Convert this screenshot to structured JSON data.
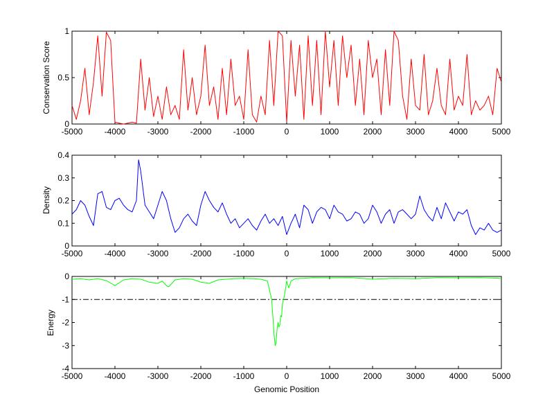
{
  "chart_data": [
    {
      "type": "line",
      "ylabel": "Conservation Score",
      "xlabel": "",
      "xlim": [
        -5000,
        5000
      ],
      "ylim": [
        0,
        1
      ],
      "xticks": [
        -5000,
        -4000,
        -3000,
        -2000,
        -1000,
        0,
        1000,
        2000,
        3000,
        4000,
        5000
      ],
      "yticks": [
        0,
        0.5,
        1
      ],
      "ytick_labels": [
        "0",
        "0.5",
        "1"
      ],
      "color": "#ff0000",
      "series": [
        {
          "x": [
            -5000,
            -4900,
            -4800,
            -4700,
            -4600,
            -4500,
            -4400,
            -4300,
            -4200,
            -4100,
            -4000,
            -3900,
            -3800,
            -3700,
            -3600,
            -3500,
            -3400,
            -3300,
            -3200,
            -3100,
            -3000,
            -2900,
            -2800,
            -2700,
            -2600,
            -2500,
            -2400,
            -2300,
            -2200,
            -2100,
            -2000,
            -1900,
            -1800,
            -1700,
            -1600,
            -1500,
            -1400,
            -1300,
            -1200,
            -1100,
            -1000,
            -900,
            -800,
            -700,
            -600,
            -500,
            -400,
            -300,
            -200,
            -100,
            0,
            100,
            200,
            300,
            400,
            500,
            600,
            700,
            800,
            900,
            1000,
            1100,
            1200,
            1300,
            1400,
            1500,
            1600,
            1700,
            1800,
            1900,
            2000,
            2100,
            2200,
            2300,
            2400,
            2500,
            2600,
            2700,
            2800,
            2900,
            3000,
            3100,
            3200,
            3300,
            3400,
            3500,
            3600,
            3700,
            3800,
            3900,
            4000,
            4100,
            4200,
            4300,
            4400,
            4500,
            4600,
            4700,
            4800,
            4900,
            5000
          ],
          "values": [
            0.2,
            0.05,
            0.25,
            0.6,
            0.1,
            0.45,
            0.95,
            0.3,
            0.99,
            0.9,
            0.02,
            0.01,
            0.0,
            0.01,
            0.02,
            0.01,
            0.7,
            0.15,
            0.5,
            0.08,
            0.3,
            0.05,
            0.4,
            0.1,
            0.2,
            0.05,
            0.8,
            0.15,
            0.5,
            0.1,
            0.3,
            0.85,
            0.2,
            0.4,
            0.05,
            0.6,
            0.1,
            0.7,
            0.2,
            0.3,
            0.05,
            0.8,
            0.1,
            0.02,
            0.3,
            0.1,
            0.9,
            0.2,
            1.0,
            0.95,
            0.02,
            0.9,
            0.3,
            0.85,
            0.05,
            0.95,
            0.2,
            0.9,
            0.1,
            1.0,
            0.4,
            0.9,
            0.2,
            0.95,
            0.5,
            0.85,
            0.2,
            0.7,
            0.1,
            0.9,
            0.5,
            0.7,
            0.1,
            0.8,
            0.2,
            1.0,
            0.9,
            0.3,
            0.05,
            0.7,
            0.2,
            0.15,
            0.75,
            0.1,
            0.25,
            0.6,
            0.2,
            0.1,
            0.7,
            0.15,
            0.3,
            0.2,
            0.75,
            0.1,
            0.25,
            0.15,
            0.2,
            0.3,
            0.1,
            0.6,
            0.45
          ]
        }
      ]
    },
    {
      "type": "line",
      "ylabel": "Density",
      "xlabel": "",
      "xlim": [
        -5000,
        5000
      ],
      "ylim": [
        0,
        0.4
      ],
      "xticks": [
        -5000,
        -4000,
        -3000,
        -2000,
        -1000,
        0,
        1000,
        2000,
        3000,
        4000,
        5000
      ],
      "yticks": [
        0,
        0.1,
        0.2,
        0.3,
        0.4
      ],
      "ytick_labels": [
        "0",
        "0.1",
        "0.2",
        "0.3",
        "0.4"
      ],
      "color": "#0000ff",
      "series": [
        {
          "x": [
            -5000,
            -4900,
            -4800,
            -4700,
            -4600,
            -4500,
            -4400,
            -4300,
            -4200,
            -4100,
            -4000,
            -3900,
            -3800,
            -3700,
            -3600,
            -3500,
            -3450,
            -3400,
            -3300,
            -3200,
            -3100,
            -3000,
            -2900,
            -2800,
            -2700,
            -2600,
            -2500,
            -2400,
            -2300,
            -2200,
            -2100,
            -2000,
            -1900,
            -1800,
            -1700,
            -1600,
            -1500,
            -1400,
            -1300,
            -1200,
            -1100,
            -1000,
            -900,
            -800,
            -700,
            -600,
            -500,
            -400,
            -300,
            -200,
            -100,
            0,
            100,
            200,
            300,
            400,
            500,
            600,
            700,
            800,
            900,
            1000,
            1100,
            1200,
            1300,
            1400,
            1500,
            1600,
            1700,
            1800,
            1900,
            2000,
            2100,
            2200,
            2300,
            2400,
            2500,
            2600,
            2700,
            2800,
            2900,
            3000,
            3100,
            3200,
            3300,
            3400,
            3500,
            3600,
            3700,
            3800,
            3900,
            4000,
            4100,
            4200,
            4300,
            4400,
            4500,
            4600,
            4700,
            4800,
            4900,
            5000
          ],
          "values": [
            0.14,
            0.16,
            0.2,
            0.18,
            0.13,
            0.09,
            0.23,
            0.24,
            0.17,
            0.16,
            0.2,
            0.21,
            0.18,
            0.16,
            0.15,
            0.2,
            0.38,
            0.33,
            0.18,
            0.15,
            0.12,
            0.18,
            0.24,
            0.2,
            0.12,
            0.06,
            0.08,
            0.12,
            0.14,
            0.11,
            0.09,
            0.18,
            0.24,
            0.2,
            0.17,
            0.15,
            0.19,
            0.14,
            0.1,
            0.12,
            0.08,
            0.1,
            0.12,
            0.09,
            0.07,
            0.11,
            0.14,
            0.1,
            0.12,
            0.09,
            0.13,
            0.05,
            0.1,
            0.14,
            0.08,
            0.18,
            0.16,
            0.1,
            0.15,
            0.17,
            0.16,
            0.12,
            0.18,
            0.15,
            0.14,
            0.11,
            0.12,
            0.15,
            0.14,
            0.1,
            0.12,
            0.18,
            0.15,
            0.1,
            0.14,
            0.16,
            0.1,
            0.15,
            0.16,
            0.14,
            0.12,
            0.14,
            0.22,
            0.16,
            0.13,
            0.11,
            0.17,
            0.12,
            0.19,
            0.15,
            0.11,
            0.15,
            0.14,
            0.16,
            0.09,
            0.05,
            0.08,
            0.07,
            0.1,
            0.07,
            0.06,
            0.07
          ]
        }
      ]
    },
    {
      "type": "line",
      "ylabel": "Energy",
      "xlabel": "Genomic Position",
      "xlim": [
        -5000,
        5000
      ],
      "ylim": [
        -4,
        0
      ],
      "xticks": [
        -5000,
        -4000,
        -3000,
        -2000,
        -1000,
        0,
        1000,
        2000,
        3000,
        4000,
        5000
      ],
      "yticks": [
        0,
        -1,
        -2,
        -3,
        -4
      ],
      "ytick_labels": [
        "0",
        "-1",
        "-2",
        "-3",
        "-4"
      ],
      "color": "#00ff00",
      "threshold": -1,
      "series": [
        {
          "x": [
            -5000,
            -4800,
            -4600,
            -4400,
            -4200,
            -4000,
            -3800,
            -3600,
            -3400,
            -3200,
            -3000,
            -2900,
            -2800,
            -2750,
            -2600,
            -2400,
            -2200,
            -2000,
            -1800,
            -1600,
            -1400,
            -1200,
            -1000,
            -800,
            -600,
            -450,
            -400,
            -350,
            -320,
            -300,
            -270,
            -250,
            -220,
            -200,
            -180,
            -160,
            -140,
            -120,
            -100,
            -50,
            0,
            50,
            100,
            200,
            400,
            600,
            1000,
            1500,
            2000,
            2500,
            3000,
            3500,
            4000,
            4500,
            5000
          ],
          "values": [
            -0.12,
            -0.1,
            -0.15,
            -0.1,
            -0.18,
            -0.4,
            -0.15,
            -0.1,
            -0.12,
            -0.25,
            -0.3,
            -0.2,
            -0.4,
            -0.45,
            -0.15,
            -0.1,
            -0.12,
            -0.25,
            -0.3,
            -0.15,
            -0.12,
            -0.1,
            -0.08,
            -0.1,
            -0.12,
            -0.2,
            -0.6,
            -1.0,
            -1.8,
            -2.4,
            -3.0,
            -2.9,
            -2.2,
            -2.0,
            -2.2,
            -2.1,
            -1.7,
            -1.75,
            -1.2,
            -0.8,
            -0.2,
            -0.5,
            -0.2,
            -0.1,
            -0.08,
            -0.05,
            -0.06,
            -0.05,
            -0.12,
            -0.08,
            -0.1,
            -0.05,
            -0.06,
            -0.05,
            -0.08
          ]
        }
      ]
    }
  ]
}
